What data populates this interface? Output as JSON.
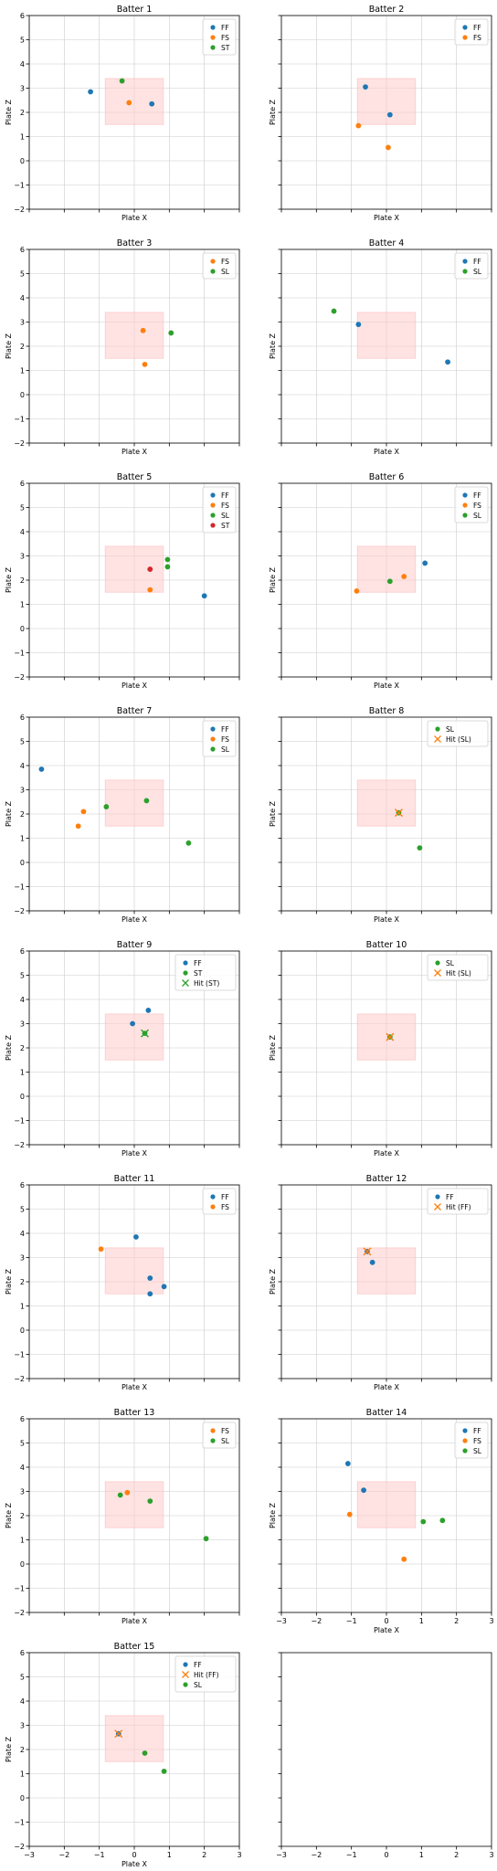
{
  "colors": {
    "FF": "#1f77b4",
    "FS": "#ff7f0e",
    "ST": "#2ca02c",
    "SL": "#2ca02c",
    "ST_in_5": "#d62728",
    "hit": "#ff7f0e",
    "hit_ST": "#2ca02c",
    "zone_fill": "#ffcccc",
    "grid": "#cccccc",
    "frame": "#000000"
  },
  "axes": {
    "xlim": [
      -3,
      3
    ],
    "ylim": [
      -2,
      6
    ],
    "xticks": [
      -3,
      -2,
      -1,
      0,
      1,
      2,
      3
    ],
    "yticks": [
      -2,
      -1,
      0,
      1,
      2,
      3,
      4,
      5,
      6
    ],
    "xlabel": "Plate X",
    "ylabel": "Plate Z"
  },
  "strike_zone": {
    "x": [
      -0.83,
      0.83
    ],
    "z": [
      1.5,
      3.4
    ]
  },
  "chart_data": [
    {
      "type": "scatter",
      "title": "Batter 1",
      "xlabel": "Plate X",
      "ylabel": "Plate Z",
      "legend": [
        "FF",
        "FS",
        "ST"
      ],
      "series": [
        {
          "name": "FF",
          "points": [
            [
              -1.25,
              2.85
            ],
            [
              0.5,
              2.35
            ]
          ]
        },
        {
          "name": "FS",
          "points": [
            [
              -0.15,
              2.4
            ]
          ]
        },
        {
          "name": "ST",
          "points": [
            [
              -0.35,
              3.3
            ]
          ]
        }
      ]
    },
    {
      "type": "scatter",
      "title": "Batter 2",
      "xlabel": "Plate X",
      "ylabel": "Plate Z",
      "legend": [
        "FF",
        "FS"
      ],
      "series": [
        {
          "name": "FF",
          "points": [
            [
              -0.6,
              3.05
            ],
            [
              0.1,
              1.9
            ]
          ]
        },
        {
          "name": "FS",
          "points": [
            [
              -0.8,
              1.45
            ],
            [
              0.05,
              0.55
            ]
          ]
        }
      ]
    },
    {
      "type": "scatter",
      "title": "Batter 3",
      "xlabel": "Plate X",
      "ylabel": "Plate Z",
      "legend": [
        "FS",
        "SL"
      ],
      "series": [
        {
          "name": "FS",
          "points": [
            [
              0.25,
              2.65
            ],
            [
              0.3,
              1.25
            ]
          ]
        },
        {
          "name": "SL",
          "points": [
            [
              1.05,
              2.55
            ]
          ]
        }
      ]
    },
    {
      "type": "scatter",
      "title": "Batter 4",
      "xlabel": "Plate X",
      "ylabel": "Plate Z",
      "legend": [
        "FF",
        "SL"
      ],
      "series": [
        {
          "name": "FF",
          "points": [
            [
              -0.8,
              2.9
            ],
            [
              1.75,
              1.35
            ]
          ]
        },
        {
          "name": "SL",
          "points": [
            [
              -1.5,
              3.45
            ]
          ]
        }
      ]
    },
    {
      "type": "scatter",
      "title": "Batter 5",
      "xlabel": "Plate X",
      "ylabel": "Plate Z",
      "legend": [
        "FF",
        "FS",
        "SL",
        "ST"
      ],
      "series": [
        {
          "name": "FF",
          "points": [
            [
              2.0,
              1.35
            ]
          ]
        },
        {
          "name": "FS",
          "points": [
            [
              0.45,
              1.6
            ]
          ]
        },
        {
          "name": "SL",
          "points": [
            [
              0.95,
              2.85
            ],
            [
              0.95,
              2.55
            ]
          ]
        },
        {
          "name": "ST",
          "points": [
            [
              0.45,
              2.45
            ]
          ]
        }
      ]
    },
    {
      "type": "scatter",
      "title": "Batter 6",
      "xlabel": "Plate X",
      "ylabel": "Plate Z",
      "legend": [
        "FF",
        "FS",
        "SL"
      ],
      "series": [
        {
          "name": "FF",
          "points": [
            [
              1.1,
              2.7
            ]
          ]
        },
        {
          "name": "FS",
          "points": [
            [
              -0.85,
              1.55
            ],
            [
              0.5,
              2.15
            ]
          ]
        },
        {
          "name": "SL",
          "points": [
            [
              0.1,
              1.95
            ]
          ]
        }
      ]
    },
    {
      "type": "scatter",
      "title": "Batter 7",
      "xlabel": "Plate X",
      "ylabel": "Plate Z",
      "legend": [
        "FF",
        "FS",
        "SL"
      ],
      "series": [
        {
          "name": "FF",
          "points": [
            [
              -2.65,
              3.85
            ]
          ]
        },
        {
          "name": "FS",
          "points": [
            [
              -1.45,
              2.1
            ],
            [
              -1.6,
              1.5
            ]
          ]
        },
        {
          "name": "SL",
          "points": [
            [
              -0.8,
              2.3
            ],
            [
              0.35,
              2.55
            ],
            [
              1.55,
              0.8
            ]
          ]
        }
      ]
    },
    {
      "type": "scatter",
      "title": "Batter 8",
      "xlabel": "Plate X",
      "ylabel": "Plate Z",
      "legend": [
        "SL",
        "Hit (SL)"
      ],
      "series": [
        {
          "name": "SL",
          "points": [
            [
              0.35,
              2.05
            ],
            [
              0.95,
              0.6
            ]
          ]
        },
        {
          "name": "Hit (SL)",
          "marker": "x",
          "points": [
            [
              0.35,
              2.05
            ]
          ]
        }
      ]
    },
    {
      "type": "scatter",
      "title": "Batter 9",
      "xlabel": "Plate X",
      "ylabel": "Plate Z",
      "legend": [
        "FF",
        "ST",
        "Hit (ST)"
      ],
      "series": [
        {
          "name": "FF",
          "points": [
            [
              -0.05,
              3.0
            ],
            [
              0.4,
              3.55
            ]
          ]
        },
        {
          "name": "ST",
          "points": [
            [
              0.3,
              2.6
            ]
          ]
        },
        {
          "name": "Hit (ST)",
          "marker": "x",
          "points": [
            [
              0.3,
              2.6
            ]
          ]
        }
      ]
    },
    {
      "type": "scatter",
      "title": "Batter 10",
      "xlabel": "Plate X",
      "ylabel": "Plate Z",
      "legend": [
        "SL",
        "Hit (SL)"
      ],
      "series": [
        {
          "name": "SL",
          "points": [
            [
              0.1,
              2.45
            ]
          ]
        },
        {
          "name": "Hit (SL)",
          "marker": "x",
          "points": [
            [
              0.1,
              2.45
            ]
          ]
        }
      ]
    },
    {
      "type": "scatter",
      "title": "Batter 11",
      "xlabel": "Plate X",
      "ylabel": "Plate Z",
      "legend": [
        "FF",
        "FS"
      ],
      "series": [
        {
          "name": "FF",
          "points": [
            [
              0.05,
              3.85
            ],
            [
              0.45,
              2.15
            ],
            [
              0.85,
              1.8
            ],
            [
              0.45,
              1.5
            ]
          ]
        },
        {
          "name": "FS",
          "points": [
            [
              -0.95,
              3.35
            ]
          ]
        }
      ]
    },
    {
      "type": "scatter",
      "title": "Batter 12",
      "xlabel": "Plate X",
      "ylabel": "Plate Z",
      "legend": [
        "FF",
        "Hit (FF)"
      ],
      "series": [
        {
          "name": "FF",
          "points": [
            [
              -0.55,
              3.25
            ],
            [
              -0.4,
              2.8
            ]
          ]
        },
        {
          "name": "Hit (FF)",
          "marker": "x",
          "points": [
            [
              -0.55,
              3.25
            ]
          ]
        }
      ]
    },
    {
      "type": "scatter",
      "title": "Batter 13",
      "xlabel": "Plate X",
      "ylabel": "Plate Z",
      "legend": [
        "FS",
        "SL"
      ],
      "series": [
        {
          "name": "FS",
          "points": [
            [
              -0.2,
              2.95
            ]
          ]
        },
        {
          "name": "SL",
          "points": [
            [
              -0.4,
              2.85
            ],
            [
              0.45,
              2.6
            ],
            [
              2.05,
              1.05
            ]
          ]
        }
      ]
    },
    {
      "type": "scatter",
      "title": "Batter 14",
      "xlabel": "Plate X",
      "ylabel": "Plate Z",
      "legend": [
        "FF",
        "FS",
        "SL"
      ],
      "series": [
        {
          "name": "FF",
          "points": [
            [
              -1.1,
              4.15
            ],
            [
              -0.65,
              3.05
            ]
          ]
        },
        {
          "name": "FS",
          "points": [
            [
              -1.05,
              2.05
            ],
            [
              0.5,
              0.2
            ]
          ]
        },
        {
          "name": "SL",
          "points": [
            [
              1.05,
              1.75
            ],
            [
              1.6,
              1.8
            ]
          ]
        }
      ]
    },
    {
      "type": "scatter",
      "title": "Batter 15",
      "xlabel": "Plate X",
      "ylabel": "Plate Z",
      "legend": [
        "FF",
        "Hit (FF)",
        "SL"
      ],
      "series": [
        {
          "name": "FF",
          "points": [
            [
              -0.45,
              2.65
            ]
          ]
        },
        {
          "name": "Hit (FF)",
          "marker": "x",
          "points": [
            [
              -0.45,
              2.65
            ]
          ]
        },
        {
          "name": "SL",
          "points": [
            [
              0.3,
              1.85
            ],
            [
              0.85,
              1.1
            ]
          ]
        }
      ]
    }
  ]
}
